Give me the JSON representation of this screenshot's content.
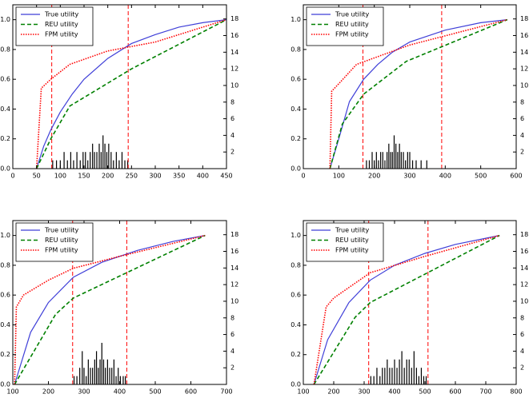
{
  "chart_data": [
    {
      "type": "line",
      "xlim": [
        0,
        450
      ],
      "xticks": [
        0,
        50,
        100,
        150,
        200,
        250,
        300,
        350,
        400,
        450
      ],
      "ylim": [
        0,
        1.1
      ],
      "yticks": [
        {
          "value": 0,
          "label": "0.0"
        },
        0.2,
        0.4,
        0.6,
        0.8,
        {
          "value": 1,
          "label": "1.0"
        }
      ],
      "y2lim": [
        0,
        19.7
      ],
      "y2ticks": [
        2,
        4,
        6,
        8,
        10,
        12,
        14,
        16,
        18
      ],
      "legend": "upper-left",
      "series": [
        {
          "name": "True utility",
          "color": "#3f3fd8",
          "style": "solid",
          "x": [
            50,
            65,
            80,
            100,
            125,
            150,
            200,
            250,
            300,
            350,
            400,
            450
          ],
          "values": [
            0,
            0.15,
            0.26,
            0.38,
            0.5,
            0.6,
            0.74,
            0.84,
            0.9,
            0.95,
            0.98,
            1
          ]
        },
        {
          "name": "REU utility",
          "color": "#008000",
          "style": "dashed",
          "x": [
            50,
            80,
            120,
            250,
            450
          ],
          "values": [
            0,
            0.2,
            0.42,
            0.67,
            1
          ]
        },
        {
          "name": "FPM utility",
          "color": "#ff0000",
          "style": "dotted",
          "x": [
            50,
            60,
            80,
            120,
            200,
            300,
            450
          ],
          "values": [
            0,
            0.54,
            0.6,
            0.7,
            0.79,
            0.85,
            1
          ]
        }
      ],
      "vlines": [
        82,
        243
      ],
      "vline_color": "#ff0000",
      "bars": {
        "axis": "y2",
        "color": "#000000",
        "x": [
          84,
          92,
          100,
          108,
          115,
          122,
          128,
          135,
          142,
          148,
          153,
          158,
          163,
          168,
          172,
          177,
          182,
          186,
          190,
          194,
          198,
          202,
          207,
          212,
          218,
          224,
          230,
          236,
          242
        ],
        "values": [
          1,
          1,
          1,
          2,
          1,
          2,
          1,
          2,
          1,
          2,
          2,
          1,
          2,
          3,
          2,
          2,
          3,
          2,
          4,
          3,
          2,
          3,
          2,
          1,
          2,
          1,
          2,
          1,
          1
        ]
      }
    },
    {
      "type": "line",
      "xlim": [
        0,
        600
      ],
      "xticks": [
        0,
        100,
        200,
        300,
        400,
        500,
        600
      ],
      "ylim": [
        0,
        1.1
      ],
      "yticks": [
        {
          "value": 0,
          "label": "0.0"
        },
        0.2,
        0.4,
        0.6,
        0.8,
        {
          "value": 1,
          "label": "1.0"
        }
      ],
      "y2lim": [
        0,
        19.7
      ],
      "y2ticks": [
        2,
        4,
        6,
        8,
        10,
        12,
        14,
        16,
        18
      ],
      "legend": "upper-left",
      "series": [
        {
          "name": "True utility",
          "color": "#3f3fd8",
          "style": "solid",
          "x": [
            75,
            100,
            130,
            170,
            210,
            250,
            300,
            400,
            500,
            575
          ],
          "values": [
            0,
            0.2,
            0.45,
            0.6,
            0.7,
            0.78,
            0.85,
            0.93,
            0.98,
            1
          ]
        },
        {
          "name": "REU utility",
          "color": "#008000",
          "style": "dashed",
          "x": [
            75,
            110,
            170,
            290,
            575
          ],
          "values": [
            0,
            0.3,
            0.5,
            0.72,
            1
          ]
        },
        {
          "name": "FPM utility",
          "color": "#ff0000",
          "style": "dotted",
          "x": [
            75,
            80,
            100,
            150,
            300,
            575
          ],
          "values": [
            0,
            0.52,
            0.57,
            0.7,
            0.83,
            1
          ]
        }
      ],
      "vlines": [
        168,
        390
      ],
      "vline_color": "#ff0000",
      "bars": {
        "axis": "y2",
        "color": "#000000",
        "x": [
          178,
          186,
          194,
          200,
          206,
          212,
          218,
          224,
          230,
          236,
          241,
          246,
          251,
          256,
          261,
          266,
          271,
          276,
          282,
          288,
          294,
          300,
          308,
          318,
          332,
          348
        ],
        "values": [
          1,
          1,
          2,
          1,
          2,
          1,
          2,
          2,
          1,
          2,
          3,
          2,
          2,
          4,
          3,
          2,
          3,
          2,
          2,
          1,
          2,
          2,
          1,
          1,
          1,
          1
        ]
      }
    },
    {
      "type": "line",
      "xlim": [
        100,
        700
      ],
      "xticks": [
        100,
        200,
        300,
        400,
        500,
        600,
        700
      ],
      "ylim": [
        0,
        1.1
      ],
      "yticks": [
        {
          "value": 0,
          "label": "0.0"
        },
        0.2,
        0.4,
        0.6,
        0.8,
        {
          "value": 1,
          "label": "1.0"
        }
      ],
      "y2lim": [
        0,
        19.7
      ],
      "y2ticks": [
        2,
        4,
        6,
        8,
        10,
        12,
        14,
        16,
        18
      ],
      "legend": "upper-left",
      "series": [
        {
          "name": "True utility",
          "color": "#3f3fd8",
          "style": "solid",
          "x": [
            105,
            150,
            200,
            270,
            350,
            450,
            550,
            640
          ],
          "values": [
            0,
            0.35,
            0.55,
            0.72,
            0.82,
            0.9,
            0.96,
            1
          ]
        },
        {
          "name": "REU utility",
          "color": "#008000",
          "style": "dashed",
          "x": [
            105,
            220,
            270,
            640
          ],
          "values": [
            0,
            0.47,
            0.58,
            1
          ]
        },
        {
          "name": "FPM utility",
          "color": "#ff0000",
          "style": "dotted",
          "x": [
            105,
            110,
            130,
            200,
            270,
            400,
            640
          ],
          "values": [
            0,
            0.52,
            0.6,
            0.7,
            0.78,
            0.86,
            1
          ]
        }
      ],
      "vlines": [
        268,
        420
      ],
      "vline_color": "#ff0000",
      "bars": {
        "axis": "y2",
        "color": "#000000",
        "x": [
          272,
          280,
          288,
          295,
          300,
          306,
          312,
          318,
          324,
          330,
          335,
          340,
          345,
          350,
          355,
          360,
          366,
          372,
          378,
          384,
          390,
          396,
          402,
          410,
          416
        ],
        "values": [
          1,
          1,
          2,
          4,
          2,
          1,
          3,
          2,
          2,
          3,
          4,
          2,
          3,
          5,
          3,
          2,
          3,
          2,
          2,
          3,
          1,
          2,
          1,
          1,
          1
        ]
      }
    },
    {
      "type": "line",
      "xlim": [
        100,
        800
      ],
      "xticks": [
        100,
        200,
        300,
        400,
        500,
        600,
        700,
        800
      ],
      "ylim": [
        0,
        1.1
      ],
      "yticks": [
        {
          "value": 0,
          "label": "0.0"
        },
        0.2,
        0.4,
        0.6,
        0.8,
        {
          "value": 1,
          "label": "1.0"
        }
      ],
      "y2lim": [
        0,
        19.7
      ],
      "y2ticks": [
        2,
        4,
        6,
        8,
        10,
        12,
        14,
        16,
        18
      ],
      "legend": "upper-left",
      "series": [
        {
          "name": "True utility",
          "color": "#3f3fd8",
          "style": "solid",
          "x": [
            135,
            180,
            250,
            320,
            400,
            500,
            600,
            745
          ],
          "values": [
            0,
            0.3,
            0.55,
            0.7,
            0.8,
            0.88,
            0.94,
            1
          ]
        },
        {
          "name": "REU utility",
          "color": "#008000",
          "style": "dashed",
          "x": [
            135,
            270,
            320,
            745
          ],
          "values": [
            0,
            0.45,
            0.55,
            1
          ]
        },
        {
          "name": "FPM utility",
          "color": "#ff0000",
          "style": "dotted",
          "x": [
            135,
            175,
            200,
            320,
            500,
            745
          ],
          "values": [
            0,
            0.52,
            0.58,
            0.75,
            0.86,
            1
          ]
        }
      ],
      "vlines": [
        315,
        510
      ],
      "vline_color": "#ff0000",
      "bars": {
        "axis": "y2",
        "color": "#000000",
        "x": [
          322,
          332,
          342,
          352,
          360,
          368,
          376,
          384,
          392,
          400,
          408,
          416,
          424,
          432,
          440,
          448,
          456,
          464,
          472,
          480,
          488,
          496,
          504
        ],
        "values": [
          1,
          1,
          2,
          1,
          2,
          2,
          3,
          2,
          2,
          3,
          2,
          3,
          4,
          2,
          3,
          3,
          2,
          4,
          2,
          1,
          2,
          1,
          1
        ]
      }
    }
  ]
}
